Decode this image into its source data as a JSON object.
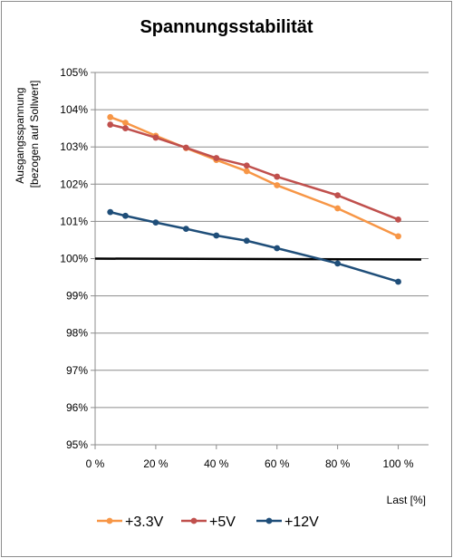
{
  "chart_data": {
    "type": "line",
    "title": "Spannungsstabilität",
    "ylabel_lines": [
      "Ausgangsspannung",
      "[bezogen auf Sollwert]"
    ],
    "xlabel": "Last [%]",
    "x_ticks": [
      {
        "value": 0,
        "label": "0 %"
      },
      {
        "value": 20,
        "label": "20 %"
      },
      {
        "value": 40,
        "label": "40 %"
      },
      {
        "value": 60,
        "label": "60 %"
      },
      {
        "value": 80,
        "label": "80 %"
      },
      {
        "value": 100,
        "label": "100 %"
      }
    ],
    "y_ticks": [
      {
        "value": 95,
        "label": "95%"
      },
      {
        "value": 96,
        "label": "96%"
      },
      {
        "value": 97,
        "label": "97%"
      },
      {
        "value": 98,
        "label": "98%"
      },
      {
        "value": 99,
        "label": "99%"
      },
      {
        "value": 100,
        "label": "100%"
      },
      {
        "value": 101,
        "label": "101%"
      },
      {
        "value": 102,
        "label": "102%"
      },
      {
        "value": 103,
        "label": "103%"
      },
      {
        "value": 104,
        "label": "104%"
      },
      {
        "value": 105,
        "label": "105%"
      }
    ],
    "xlim": [
      0,
      110
    ],
    "ylim": [
      95,
      105
    ],
    "x": [
      5,
      10,
      20,
      30,
      40,
      50,
      60,
      80,
      100
    ],
    "series": [
      {
        "name": "+3.3V",
        "color": "#f79646",
        "values": [
          103.8,
          103.65,
          103.3,
          102.97,
          102.65,
          102.35,
          101.97,
          101.35,
          100.6
        ]
      },
      {
        "name": "+5V",
        "color": "#c0504d",
        "values": [
          103.6,
          103.5,
          103.25,
          102.98,
          102.7,
          102.5,
          102.2,
          101.7,
          101.05
        ]
      },
      {
        "name": "+12V",
        "color": "#1f4e79",
        "values": [
          101.25,
          101.15,
          100.97,
          100.8,
          100.62,
          100.48,
          100.28,
          99.87,
          99.38
        ]
      }
    ],
    "reference_line": {
      "value": 100,
      "color": "#000000"
    },
    "grid": {
      "y": true,
      "x": false
    },
    "legend": "bottom"
  }
}
